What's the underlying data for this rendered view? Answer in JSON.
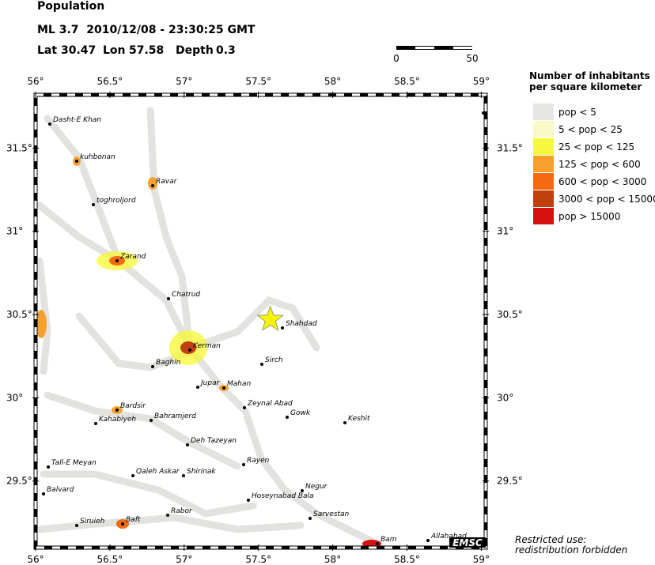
{
  "header": {
    "title": "Population",
    "event": "ML 3.7  2010/12/08 - 23:30:25 GMT",
    "lat_label": "Lat",
    "lat": 30.47,
    "lon_label": "Lon",
    "lon": 57.58,
    "depth_label": "Depth",
    "depth": 0.3
  },
  "scale_bar": {
    "labels": [
      "0",
      "50"
    ]
  },
  "map": {
    "xlim": [
      56,
      59.03
    ],
    "ylim": [
      29.1,
      31.82
    ],
    "lon_ticks": [
      {
        "value": 56,
        "label": "56°"
      },
      {
        "value": 56.5,
        "label": "56.5°"
      },
      {
        "value": 57,
        "label": "57°"
      },
      {
        "value": 57.5,
        "label": "57.5°"
      },
      {
        "value": 58,
        "label": "58°"
      },
      {
        "value": 58.5,
        "label": "58.5°"
      },
      {
        "value": 59,
        "label": "59°"
      }
    ],
    "lat_ticks": [
      {
        "value": 29.5,
        "label": "29.5°"
      },
      {
        "value": 30,
        "label": "30°"
      },
      {
        "value": 30.5,
        "label": "30.5°"
      },
      {
        "value": 31,
        "label": "31°"
      },
      {
        "value": 31.5,
        "label": "31.5°"
      }
    ],
    "cities": [
      "Dasht-E Khan",
      "kuhbonan",
      "Ravar",
      "toghroljord",
      "Zarand",
      "Chatrud",
      "Shahdad",
      "Kerman",
      "Sirch",
      "Baghin",
      "Jupar",
      "Mahan",
      "Zeynal Abad",
      "Bardsir",
      "Gowk",
      "Keshit",
      "Kahabiyeh",
      "Bahramjerd",
      "Deh Tazeyan",
      "Rayen",
      "Tall-E Meyan",
      "Qaleh Askar",
      "Shirinak",
      "Negur",
      "Balvard",
      "Hoseynabad Bala",
      "Rabor",
      "Sarvestan",
      "Siruieh",
      "Baft",
      "Allahabad",
      "Bam"
    ],
    "epicenter_color": "#f5f500"
  },
  "legend": {
    "title": [
      "Number of inhabitants",
      "per square kilometer"
    ],
    "entries": [
      {
        "label": "pop < 5",
        "color": "#e6e6e2"
      },
      {
        "label": "5 < pop < 25",
        "color": "#fafac8"
      },
      {
        "label": "25 < pop < 125",
        "color": "#f7f740"
      },
      {
        "label": "125 < pop < 600",
        "color": "#f7a030"
      },
      {
        "label": "600 < pop < 3000",
        "color": "#f56a10"
      },
      {
        "label": "3000 < pop < 15000",
        "color": "#c04010"
      },
      {
        "label": "pop > 15000",
        "color": "#d81010"
      }
    ]
  },
  "notice": [
    "Restricted use:",
    "redistribution forbidden"
  ],
  "brand": "EMSC"
}
